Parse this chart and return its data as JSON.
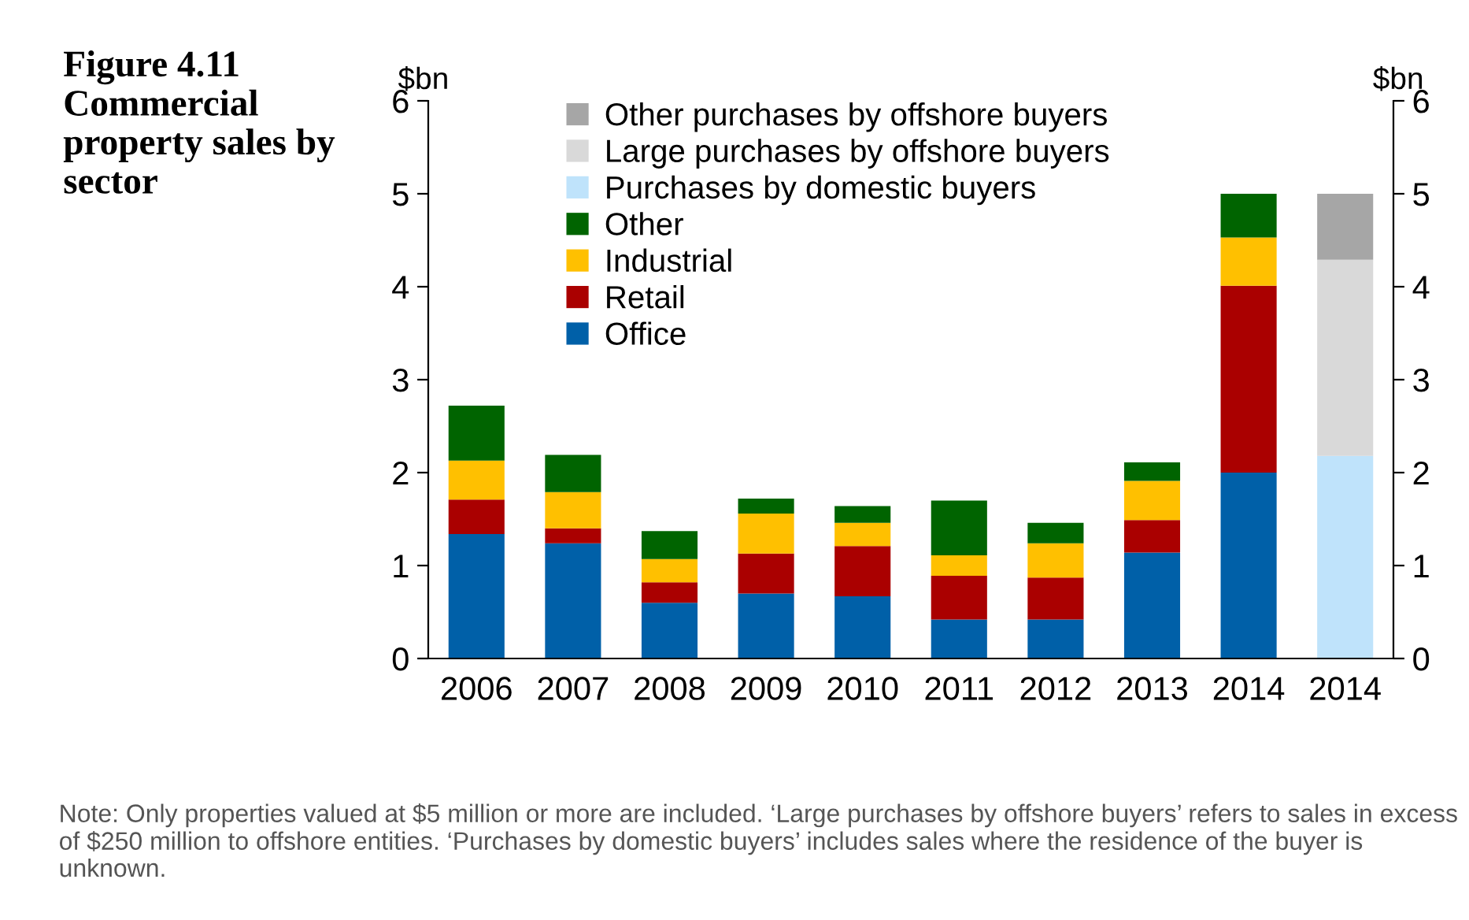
{
  "chart_data": {
    "type": "bar",
    "stacked": true,
    "title": "Figure 4.11 Commercial property sales by sector",
    "ylabel": "$bn",
    "y2label": "$bn",
    "categories": [
      "2006",
      "2007",
      "2008",
      "2009",
      "2010",
      "2011",
      "2012",
      "2013",
      "2014",
      "2014"
    ],
    "series": [
      {
        "name": "Office",
        "color": "#0060a8",
        "values": [
          1.34,
          1.24,
          0.6,
          0.7,
          0.67,
          0.42,
          0.42,
          1.14,
          2.0,
          null
        ]
      },
      {
        "name": "Retail",
        "color": "#aa0000",
        "values": [
          0.37,
          0.16,
          0.22,
          0.43,
          0.54,
          0.47,
          0.45,
          0.35,
          2.01,
          null
        ]
      },
      {
        "name": "Industrial",
        "color": "#ffc000",
        "values": [
          0.42,
          0.39,
          0.25,
          0.43,
          0.25,
          0.22,
          0.37,
          0.42,
          0.52,
          null
        ]
      },
      {
        "name": "Other",
        "color": "#006400",
        "values": [
          0.59,
          0.4,
          0.3,
          0.16,
          0.18,
          0.59,
          0.22,
          0.2,
          0.47,
          null
        ]
      },
      {
        "name": "Purchases by domestic buyers",
        "color": "#bfe3fb",
        "values": [
          null,
          null,
          null,
          null,
          null,
          null,
          null,
          null,
          null,
          2.18
        ]
      },
      {
        "name": "Large purchases by offshore buyers",
        "color": "#d9d9d9",
        "values": [
          null,
          null,
          null,
          null,
          null,
          null,
          null,
          null,
          null,
          2.11
        ]
      },
      {
        "name": "Other purchases by offshore buyers",
        "color": "#a6a6a6",
        "values": [
          null,
          null,
          null,
          null,
          null,
          null,
          null,
          null,
          null,
          0.71
        ]
      }
    ],
    "ylim": [
      0,
      6
    ],
    "yticks": [
      0,
      1,
      2,
      3,
      4,
      5,
      6
    ],
    "y2lim": [
      0,
      6
    ],
    "y2ticks": [
      0,
      1,
      2,
      3,
      4,
      5,
      6
    ],
    "legend": "top left",
    "grid": false,
    "annotations": [
      "Note: Only properties valued at $5 million or more are included. ‘Large purchases by offshore buyers’ refers to sales in excess of $250 million to offshore entities. ‘Purchases by domestic buyers’ includes sales where the residence of the buyer is unknown."
    ]
  }
}
